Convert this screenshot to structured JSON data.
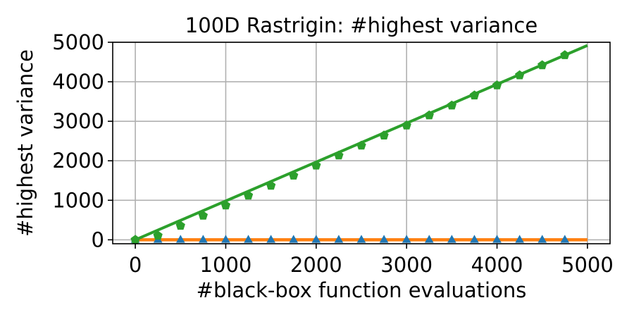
{
  "chart_data": {
    "type": "line",
    "title": "100D Rastrigin: #highest variance",
    "xlabel": "#black-box function evaluations",
    "ylabel": "#highest variance",
    "xlim": [
      -250,
      5250
    ],
    "ylim": [
      -100,
      5000
    ],
    "xticks": [
      0,
      1000,
      2000,
      3000,
      4000,
      5000
    ],
    "yticks": [
      0,
      1000,
      2000,
      3000,
      4000,
      5000
    ],
    "grid": true,
    "series": [
      {
        "color": "#2ca02c",
        "marker": "pentagon",
        "marker_x": [
          0,
          250,
          500,
          750,
          1000,
          1250,
          1500,
          1750,
          2000,
          2250,
          2500,
          2750,
          3000,
          3250,
          3500,
          3750,
          4000,
          4250,
          4500,
          4750
        ],
        "line_x": [
          0,
          5000
        ],
        "line_y": [
          0,
          4920
        ],
        "y": [
          0,
          105,
          355,
          610,
          870,
          1120,
          1370,
          1625,
          1880,
          2135,
          2385,
          2640,
          2895,
          3150,
          3400,
          3655,
          3910,
          4165,
          4420,
          4675
        ]
      },
      {
        "color": "#ff7f0e",
        "marker": "none",
        "line_x": [
          0,
          5000
        ],
        "line_y": [
          0,
          0
        ]
      },
      {
        "color": "#1f77b4",
        "marker": "triangle",
        "marker_x": [
          0,
          250,
          500,
          750,
          1000,
          1250,
          1500,
          1750,
          2000,
          2250,
          2500,
          2750,
          3000,
          3250,
          3500,
          3750,
          4000,
          4250,
          4500,
          4750
        ],
        "y": [
          0,
          0,
          0,
          0,
          0,
          0,
          0,
          0,
          0,
          0,
          0,
          0,
          0,
          0,
          0,
          0,
          0,
          0,
          0,
          0
        ]
      }
    ]
  }
}
